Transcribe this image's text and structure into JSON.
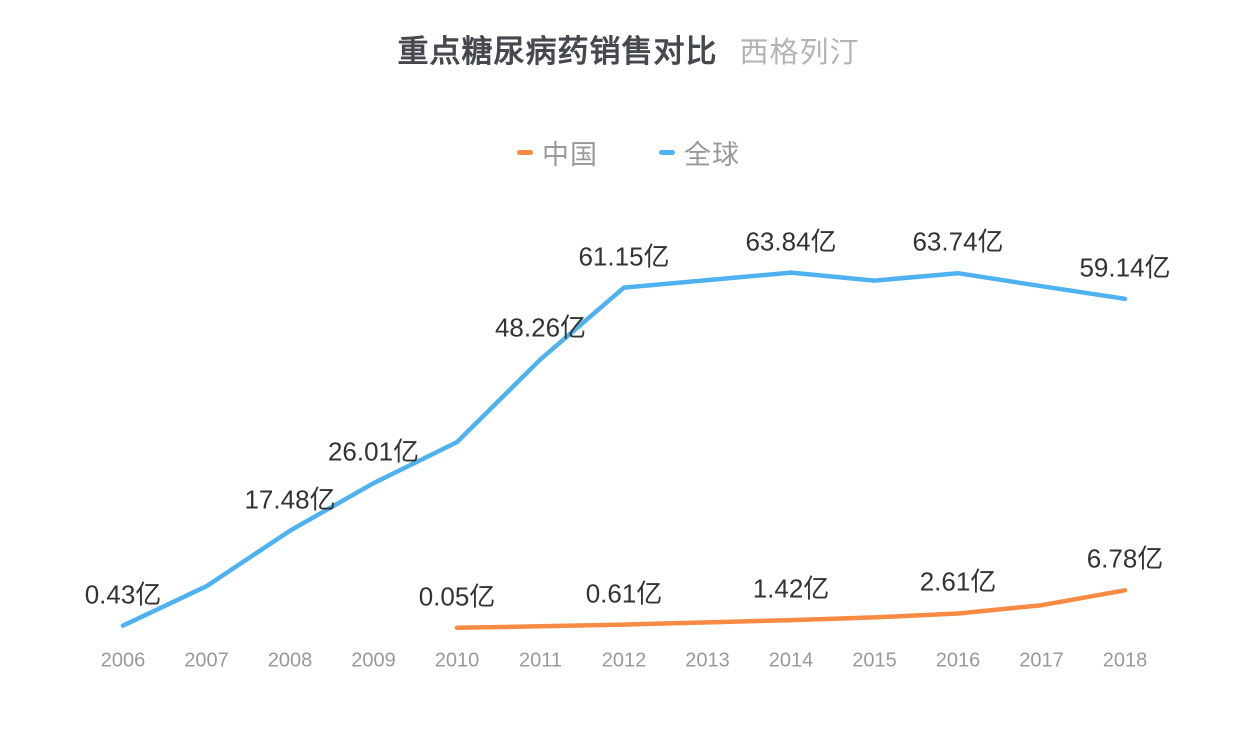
{
  "header": {
    "title": "重点糖尿病药销售对比",
    "subtitle": "西格列汀"
  },
  "colors": {
    "background": "#ffffff",
    "title_text": "#45484f",
    "subtitle_text": "#b3b3b3",
    "legend_text": "#999999",
    "axis_label_text": "#999999",
    "data_label_text": "#333333",
    "china_line": "#f78b44",
    "global_line": "#4eb1f0"
  },
  "chart_data": {
    "type": "line",
    "title": "重点糖尿病药销售对比",
    "subtitle": "西格列汀",
    "unit": "亿",
    "legend_position": "top-center",
    "grid": false,
    "y_axis_visible": false,
    "ylim": [
      0,
      70
    ],
    "categories": [
      "2006",
      "2007",
      "2008",
      "2009",
      "2010",
      "2011",
      "2012",
      "2013",
      "2014",
      "2015",
      "2016",
      "2017",
      "2018"
    ],
    "series": [
      {
        "name": "中国",
        "key": "china",
        "color": "#f78b44",
        "values": [
          null,
          null,
          null,
          null,
          0.05,
          0.3,
          0.61,
          1.0,
          1.42,
          1.9,
          2.61,
          4.1,
          6.78
        ],
        "point_labels": [
          "",
          "",
          "",
          "",
          "0.05亿",
          "",
          "0.61亿",
          "",
          "1.42亿",
          "",
          "2.61亿",
          "",
          "6.78亿"
        ]
      },
      {
        "name": "全球",
        "key": "global",
        "color": "#4eb1f0",
        "values": [
          0.43,
          7.5,
          17.48,
          26.01,
          33.4,
          48.26,
          61.15,
          62.5,
          63.84,
          62.4,
          63.74,
          61.4,
          59.14
        ],
        "point_labels": [
          "0.43亿",
          "",
          "17.48亿",
          "26.01亿",
          "",
          "48.26亿",
          "61.15亿",
          "",
          "63.84亿",
          "",
          "63.74亿",
          "",
          "59.14亿"
        ]
      }
    ]
  }
}
